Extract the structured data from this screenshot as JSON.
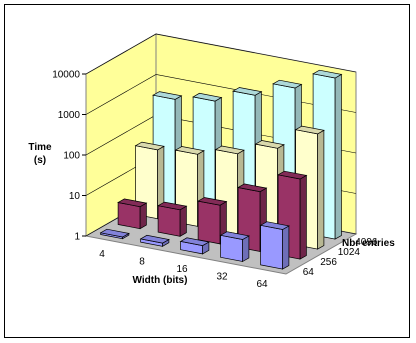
{
  "chart_data": {
    "type": "bar",
    "subtype": "3d-column",
    "ylabel_line1": "Time",
    "ylabel_line2": "(s)",
    "xlabel": "Width (bits)",
    "zlabel": "Nbr entries",
    "scale": "log",
    "ylim": [
      1,
      10000
    ],
    "y_ticks": [
      "1",
      "10",
      "100",
      "1000",
      "10000"
    ],
    "x_categories": [
      "4",
      "8",
      "16",
      "32",
      "64"
    ],
    "z_categories": [
      "64",
      "256",
      "1024",
      "4096"
    ],
    "series": [
      {
        "name": "64",
        "color": "#9999ff",
        "values": [
          1.1,
          1.2,
          1.6,
          3.5,
          9.5
        ]
      },
      {
        "name": "256",
        "color": "#993366",
        "values": [
          3.5,
          4.5,
          9,
          30,
          95
        ]
      },
      {
        "name": "1024",
        "color": "#ffffcc",
        "values": [
          50,
          60,
          95,
          200,
          700
        ]
      },
      {
        "name": "4096",
        "color": "#ccffff",
        "values": [
          500,
          700,
          1500,
          3500,
          9500
        ]
      }
    ],
    "colors": {
      "wall": "#ffff99",
      "floor": "#c0c0c0"
    },
    "grid": true,
    "legend": "none"
  }
}
